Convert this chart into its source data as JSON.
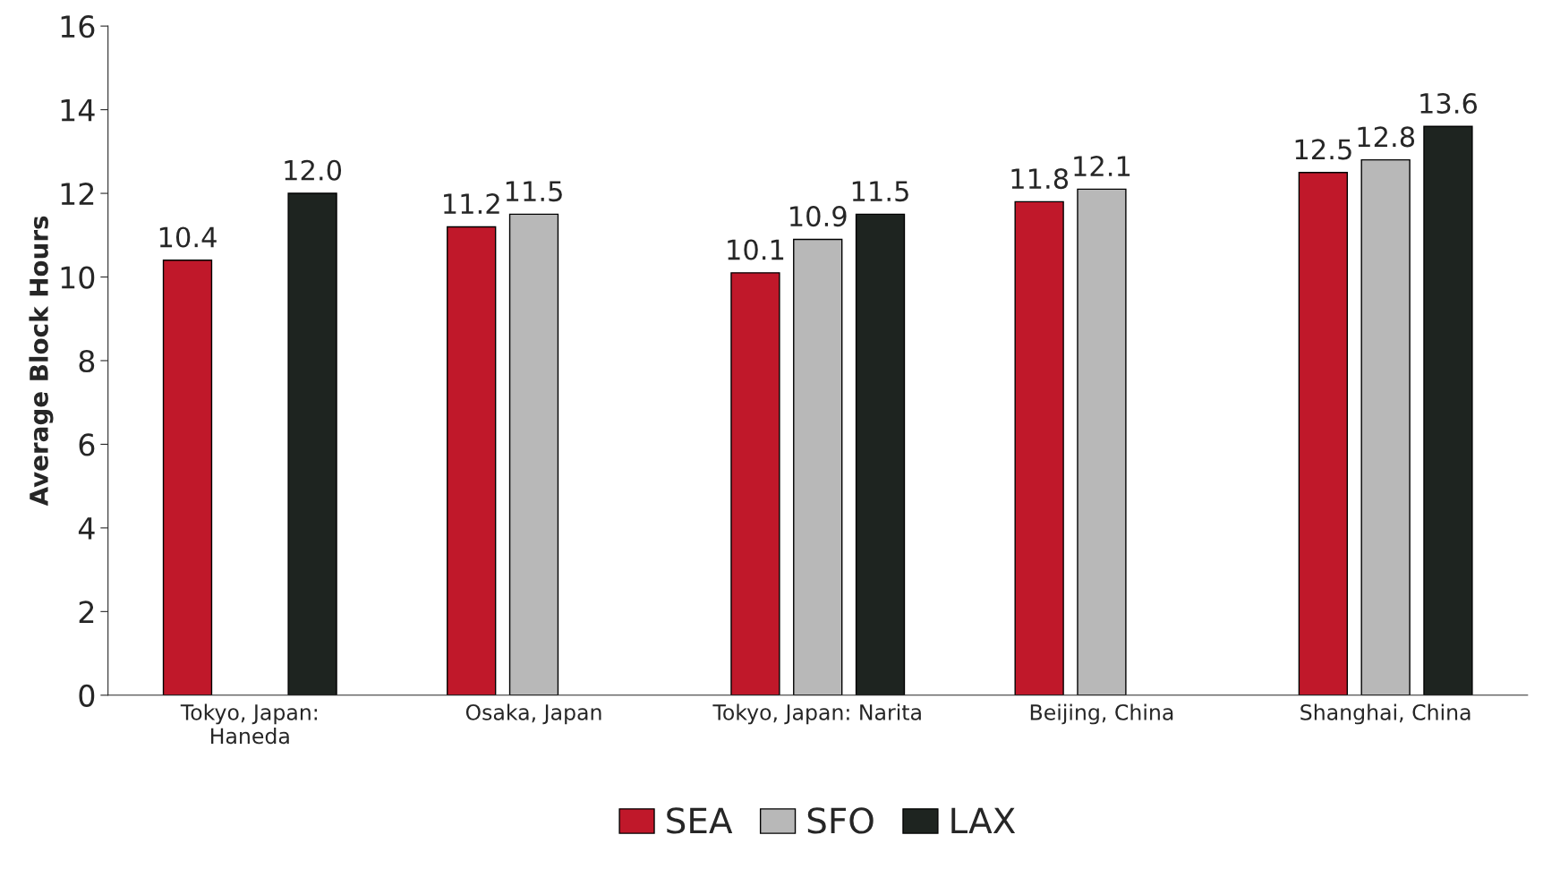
{
  "chart_data": {
    "type": "bar",
    "ylabel": "Average Block Hours",
    "categories": [
      "Tokyo, Japan:\nHaneda",
      "Osaka, Japan",
      "Tokyo, Japan: Narita",
      "Beijing, China",
      "Shanghai, China"
    ],
    "series": [
      {
        "name": "SEA",
        "color": "#c0182a",
        "values": [
          10.4,
          11.2,
          10.1,
          11.8,
          12.5
        ],
        "value_labels": [
          "10.4",
          "11.2",
          "10.1",
          "11.8",
          "12.5"
        ]
      },
      {
        "name": "SFO",
        "color": "#b8b8b8",
        "values": [
          null,
          11.5,
          10.9,
          12.1,
          12.8
        ],
        "value_labels": [
          null,
          "11.5",
          "10.9",
          "12.1",
          "12.8"
        ]
      },
      {
        "name": "LAX",
        "color": "#1e2420",
        "values": [
          12.0,
          null,
          11.5,
          null,
          13.6
        ],
        "value_labels": [
          "12.0",
          null,
          "11.5",
          null,
          "13.6"
        ]
      }
    ],
    "ylim": [
      0,
      16
    ],
    "yticks": [
      0,
      2,
      4,
      6,
      8,
      10,
      12,
      14,
      16
    ],
    "grid": false,
    "legend": "bottom"
  }
}
